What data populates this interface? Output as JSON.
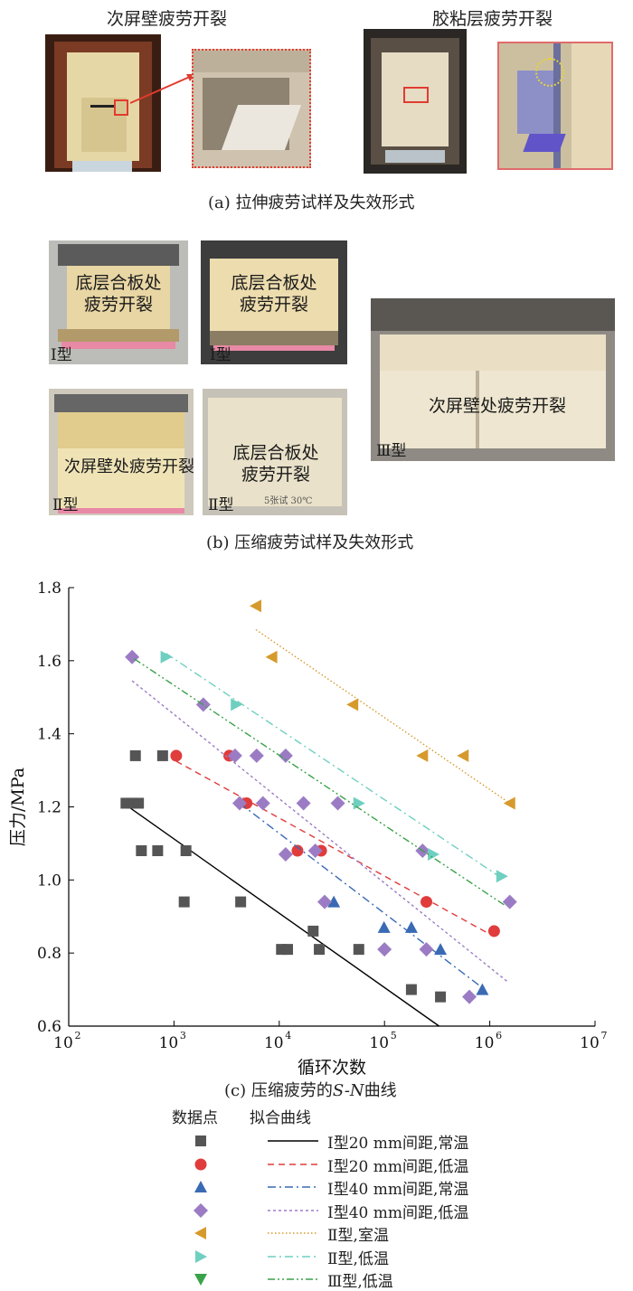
{
  "panel_a": {
    "label_left": "次屏壁疲劳开裂",
    "label_right": "胶粘层疲劳开裂",
    "caption": "(a)   拉伸疲劳试样及失效形式"
  },
  "panel_b": {
    "photos": [
      {
        "text_line1": "底层合板处",
        "text_line2": "疲劳开裂",
        "type_label": "Ⅰ型"
      },
      {
        "text_line1": "底层合板处",
        "text_line2": "疲劳开裂",
        "type_label": "Ⅰ型"
      },
      {
        "text_line1": "次屏壁处疲劳开裂",
        "type_label": "Ⅱ型"
      },
      {
        "text_line1": "底层合板处",
        "text_line2": "疲劳开裂",
        "type_label": "Ⅱ型",
        "marker_text": "5张试 30℃"
      },
      {
        "text_line1": "次屏壁处疲劳开裂",
        "type_label": "Ⅲ型"
      }
    ],
    "caption": "(b)   压缩疲劳试样及失效形式"
  },
  "panel_c": {
    "caption_prefix": "(c)   压缩疲劳的",
    "caption_italic": "S-N",
    "caption_suffix": "曲线"
  },
  "chart_data": {
    "type": "scatter",
    "xlabel": "循环次数",
    "ylabel": "压力/MPa",
    "x_scale": "log",
    "xlim": [
      100,
      10000000
    ],
    "ylim": [
      0.6,
      1.8
    ],
    "x_ticks": [
      "10",
      "10",
      "10",
      "10",
      "10",
      "10"
    ],
    "x_tick_exponents": [
      "2",
      "3",
      "4",
      "5",
      "6",
      "7"
    ],
    "y_ticks": [
      "0.6",
      "0.8",
      "1.0",
      "1.2",
      "1.4",
      "1.6",
      "1.8"
    ],
    "legend_header_points": "数据点",
    "legend_header_curves": "拟合曲线",
    "series": [
      {
        "name": "Ⅰ型20 mm间距,常温",
        "marker": "square",
        "color": "#555555",
        "line_style": "solid",
        "points": [
          [
            350,
            1.21
          ],
          [
            400,
            1.21
          ],
          [
            460,
            1.21
          ],
          [
            430,
            1.34
          ],
          [
            780,
            1.34
          ],
          [
            490,
            1.08
          ],
          [
            700,
            1.08
          ],
          [
            1300,
            1.08
          ],
          [
            1250,
            0.94
          ],
          [
            4300,
            0.94
          ],
          [
            10500,
            0.81
          ],
          [
            12000,
            0.81
          ],
          [
            21000,
            0.86
          ],
          [
            24000,
            0.81
          ],
          [
            57000,
            0.81
          ],
          [
            180000,
            0.7
          ],
          [
            340000,
            0.68
          ]
        ],
        "fit": [
          [
            350,
            1.205
          ],
          [
            330000,
            0.6
          ]
        ]
      },
      {
        "name": "Ⅰ型20 mm间距,低温",
        "marker": "circle",
        "color": "#e03c3c",
        "line_style": "dash",
        "points": [
          [
            1050,
            1.34
          ],
          [
            3350,
            1.34
          ],
          [
            4900,
            1.21
          ],
          [
            14900,
            1.08
          ],
          [
            25000,
            1.08
          ],
          [
            250000,
            0.94
          ],
          [
            1100000,
            0.86
          ]
        ],
        "fit": [
          [
            1050,
            1.325
          ],
          [
            1100000,
            0.845
          ]
        ]
      },
      {
        "name": "Ⅰ型40 mm间距,常温",
        "marker": "triangle-up",
        "color": "#3a6ab4",
        "line_style": "dashdot",
        "points": [
          [
            33000,
            0.94
          ],
          [
            99000,
            0.87
          ],
          [
            180000,
            0.87
          ],
          [
            340000,
            0.81
          ],
          [
            850000,
            0.7
          ]
        ],
        "fit": [
          [
            4200,
            1.21
          ],
          [
            850000,
            0.705
          ]
        ]
      },
      {
        "name": "Ⅰ型40 mm间距,低温",
        "marker": "diamond",
        "color": "#9b7cc4",
        "line_style": "dot",
        "points": [
          [
            400,
            1.61
          ],
          [
            1900,
            1.48
          ],
          [
            3800,
            1.34
          ],
          [
            6100,
            1.34
          ],
          [
            11500,
            1.34
          ],
          [
            4200,
            1.21
          ],
          [
            7000,
            1.21
          ],
          [
            17000,
            1.21
          ],
          [
            36000,
            1.21
          ],
          [
            11500,
            1.07
          ],
          [
            22000,
            1.08
          ],
          [
            27000,
            0.94
          ],
          [
            100000,
            0.81
          ],
          [
            250000,
            0.81
          ],
          [
            640000,
            0.68
          ],
          [
            230000,
            1.08
          ],
          [
            1550000,
            0.94
          ]
        ],
        "fit": [
          [
            400,
            1.545
          ],
          [
            1500000,
            0.72
          ]
        ]
      },
      {
        "name": "Ⅱ型,室温",
        "marker": "triangle-left",
        "color": "#d69a2c",
        "line_style": "dotted-fine",
        "points": [
          [
            6000,
            1.75
          ],
          [
            8500,
            1.61
          ],
          [
            50000,
            1.48
          ],
          [
            230000,
            1.34
          ],
          [
            560000,
            1.34
          ],
          [
            1550000,
            1.21
          ]
        ],
        "fit": [
          [
            6000,
            1.685
          ],
          [
            1550000,
            1.21
          ]
        ]
      },
      {
        "name": "Ⅱ型,低温",
        "marker": "triangle-right",
        "color": "#6fcfc0",
        "line_style": "dashdot",
        "points": [
          [
            840,
            1.61
          ],
          [
            3900,
            1.48
          ],
          [
            57000,
            1.21
          ],
          [
            290000,
            1.07
          ],
          [
            1300000,
            1.01
          ]
        ],
        "fit": [
          [
            840,
            1.62
          ],
          [
            1300000,
            1.005
          ]
        ]
      },
      {
        "name": "Ⅲ型,低温",
        "marker": "triangle-down",
        "color": "#3aa24a",
        "line_style": "dashdotdot",
        "points": [],
        "fit": [
          [
            420,
            1.605
          ],
          [
            1400000,
            0.93
          ]
        ]
      }
    ]
  }
}
